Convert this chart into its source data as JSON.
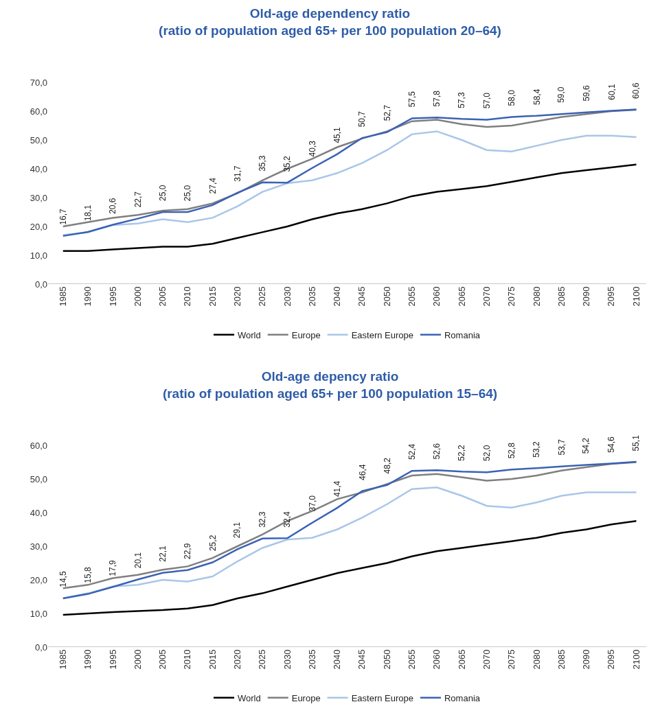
{
  "chart_data": [
    {
      "type": "line",
      "title": "Old-age dependency ratio\n(ratio of population aged 65+ per 100 population 20–64)",
      "categories": [
        "1985",
        "1990",
        "1995",
        "2000",
        "2005",
        "2010",
        "2015",
        "2020",
        "2025",
        "2030",
        "2035",
        "2040",
        "2045",
        "2050",
        "2055",
        "2060",
        "2065",
        "2070",
        "2075",
        "2080",
        "2085",
        "2090",
        "2095",
        "2100"
      ],
      "ylim": [
        0,
        70
      ],
      "yticks": [
        {
          "value": 0,
          "label": "0,0"
        },
        {
          "value": 10,
          "label": "10,0"
        },
        {
          "value": 20,
          "label": "20,0"
        },
        {
          "value": 30,
          "label": "30,0"
        },
        {
          "value": 40,
          "label": "40,0"
        },
        {
          "value": 50,
          "label": "50,0"
        },
        {
          "value": 60,
          "label": "60,0"
        },
        {
          "value": 70,
          "label": "70,0"
        }
      ],
      "grid": false,
      "legend": "bottom",
      "marker": "none",
      "line_style": "solid",
      "series": [
        {
          "name": "World",
          "color": "#000000",
          "values": [
            11.5,
            11.5,
            12,
            12.5,
            13,
            13,
            14,
            16,
            18,
            20,
            22.5,
            24.5,
            26,
            28,
            30.5,
            32,
            33,
            34,
            35.5,
            37,
            38.5,
            39.5,
            40.5,
            41.5
          ]
        },
        {
          "name": "Europe",
          "color": "#7f7f7f",
          "values": [
            20,
            21.5,
            23,
            24,
            25.5,
            26,
            28,
            31.5,
            36,
            40,
            43.5,
            47.5,
            50.5,
            53,
            56.5,
            57,
            55.5,
            54.5,
            55,
            56.5,
            58,
            59,
            60,
            60.5
          ]
        },
        {
          "name": "Eastern Europe",
          "color": "#a9c6e8",
          "values": [
            17,
            18,
            20.5,
            21,
            22.5,
            21.5,
            23,
            27,
            32,
            35,
            36,
            38.5,
            42,
            46.5,
            52,
            53,
            50,
            46.5,
            46,
            48,
            50,
            51.5,
            51.5,
            51
          ]
        },
        {
          "name": "Romania",
          "color": "#3a62b5",
          "values": [
            16.7,
            18.1,
            20.6,
            22.7,
            25.0,
            25.0,
            27.4,
            31.7,
            35.3,
            35.2,
            40.3,
            45.1,
            50.7,
            52.7,
            57.5,
            57.8,
            57.3,
            57.0,
            58.0,
            58.4,
            59.0,
            59.6,
            60.1,
            60.6
          ],
          "value_labels": [
            "16,7",
            "18,1",
            "20,6",
            "22,7",
            "25,0",
            "25,0",
            "27,4",
            "31,7",
            "35,3",
            "35,2",
            "40,3",
            "45,1",
            "50,7",
            "52,7",
            "57,5",
            "57,8",
            "57,3",
            "57,0",
            "58,0",
            "58,4",
            "59,0",
            "59,6",
            "60,1",
            "60,6"
          ]
        }
      ]
    },
    {
      "type": "line",
      "title": "Old-age depency ratio\n(ratio of poulation aged 65+ per 100 population 15–64)",
      "categories": [
        "1985",
        "1990",
        "1995",
        "2000",
        "2005",
        "2010",
        "2015",
        "2020",
        "2025",
        "2030",
        "2035",
        "2040",
        "2045",
        "2050",
        "2055",
        "2060",
        "2065",
        "2070",
        "2075",
        "2080",
        "2085",
        "2090",
        "2095",
        "2100"
      ],
      "ylim": [
        0,
        60
      ],
      "yticks": [
        {
          "value": 0,
          "label": "0,0"
        },
        {
          "value": 10,
          "label": "10,0"
        },
        {
          "value": 20,
          "label": "20,0"
        },
        {
          "value": 30,
          "label": "30,0"
        },
        {
          "value": 40,
          "label": "40,0"
        },
        {
          "value": 50,
          "label": "50,0"
        },
        {
          "value": 60,
          "label": "60,0"
        }
      ],
      "grid": false,
      "legend": "bottom",
      "marker": "none",
      "line_style": "solid",
      "series": [
        {
          "name": "World",
          "color": "#000000",
          "values": [
            9.6,
            10,
            10.4,
            10.7,
            11,
            11.5,
            12.5,
            14.5,
            16,
            18,
            20,
            22,
            23.5,
            25,
            27,
            28.5,
            29.5,
            30.5,
            31.5,
            32.5,
            34,
            35,
            36.5,
            37.5
          ]
        },
        {
          "name": "Europe",
          "color": "#7f7f7f",
          "values": [
            17.5,
            18.5,
            20.5,
            21.5,
            23,
            24,
            26.5,
            30,
            33.5,
            37.5,
            40.5,
            44,
            46,
            48.5,
            51,
            51.5,
            50.5,
            49.5,
            50,
            51,
            52.5,
            53.5,
            54.5,
            55
          ]
        },
        {
          "name": "Eastern Europe",
          "color": "#a9c6e8",
          "values": [
            14.5,
            16,
            18,
            18.5,
            20,
            19.5,
            21,
            25.5,
            29.5,
            32,
            32.5,
            35,
            38.5,
            42.5,
            47,
            47.5,
            45,
            42,
            41.5,
            43,
            45,
            46,
            46,
            46
          ]
        },
        {
          "name": "Romania",
          "color": "#3a62b5",
          "values": [
            14.5,
            15.8,
            17.9,
            20.1,
            22.1,
            22.9,
            25.2,
            29.1,
            32.3,
            32.4,
            37.0,
            41.4,
            46.4,
            48.2,
            52.4,
            52.6,
            52.2,
            52.0,
            52.8,
            53.2,
            53.7,
            54.2,
            54.6,
            55.1
          ],
          "value_labels": [
            "14,5",
            "15,8",
            "17,9",
            "20,1",
            "22,1",
            "22,9",
            "25,2",
            "29,1",
            "32,3",
            "32,4",
            "37,0",
            "41,4",
            "46,4",
            "48,2",
            "52,4",
            "52,6",
            "52,2",
            "52,0",
            "52,8",
            "53,2",
            "53,7",
            "54,2",
            "54,6",
            "55,1"
          ]
        }
      ]
    }
  ]
}
